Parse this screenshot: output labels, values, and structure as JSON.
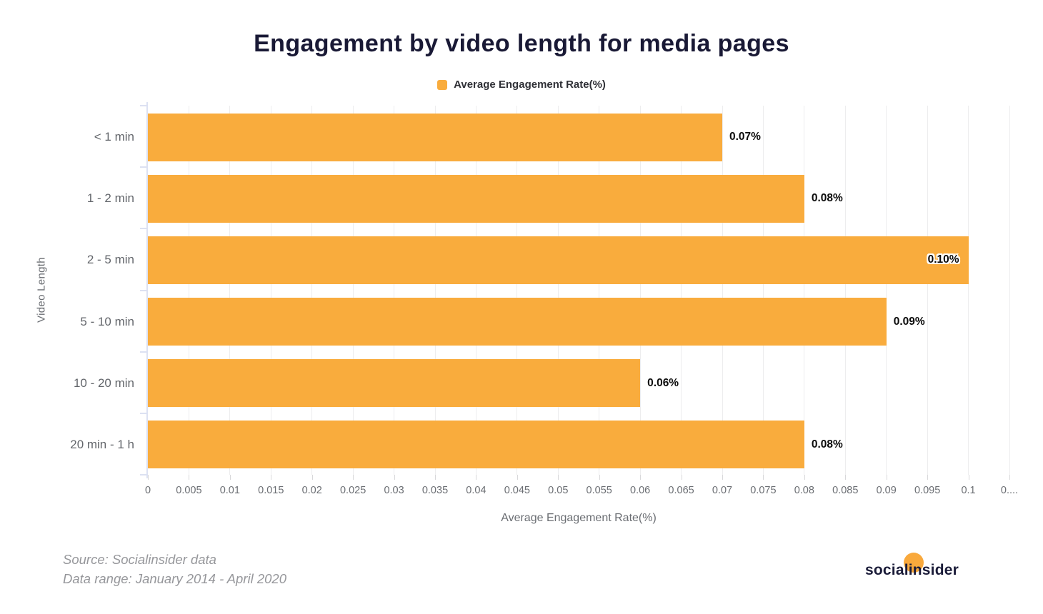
{
  "title": "Engagement by video length for media pages",
  "legend": {
    "label": "Average Engagement Rate(%)"
  },
  "chart_data": {
    "type": "bar",
    "orientation": "horizontal",
    "title": "Engagement by video length for media pages",
    "categories": [
      "< 1 min",
      "1 - 2 min",
      "2 - 5 min",
      "5 - 10 min",
      "10 - 20 min",
      "20 min - 1 h"
    ],
    "values": [
      0.07,
      0.08,
      0.1,
      0.09,
      0.06,
      0.08
    ],
    "value_labels": [
      "0.07%",
      "0.08%",
      "0.10%",
      "0.09%",
      "0.06%",
      "0.08%"
    ],
    "label_inside": [
      false,
      false,
      true,
      false,
      false,
      false
    ],
    "xlabel": "Average Engagement Rate(%)",
    "ylabel": "Video Length",
    "xlim": [
      0,
      0.105
    ],
    "grid": "vertical",
    "legend_position": "top-center",
    "x_ticks": [
      {
        "v": 0,
        "label": "0"
      },
      {
        "v": 0.005,
        "label": "0.005"
      },
      {
        "v": 0.01,
        "label": "0.01"
      },
      {
        "v": 0.015,
        "label": "0.015"
      },
      {
        "v": 0.02,
        "label": "0.02"
      },
      {
        "v": 0.025,
        "label": "0.025"
      },
      {
        "v": 0.03,
        "label": "0.03"
      },
      {
        "v": 0.035,
        "label": "0.035"
      },
      {
        "v": 0.04,
        "label": "0.04"
      },
      {
        "v": 0.045,
        "label": "0.045"
      },
      {
        "v": 0.05,
        "label": "0.05"
      },
      {
        "v": 0.055,
        "label": "0.055"
      },
      {
        "v": 0.06,
        "label": "0.06"
      },
      {
        "v": 0.065,
        "label": "0.065"
      },
      {
        "v": 0.07,
        "label": "0.07"
      },
      {
        "v": 0.075,
        "label": "0.075"
      },
      {
        "v": 0.08,
        "label": "0.08"
      },
      {
        "v": 0.085,
        "label": "0.085"
      },
      {
        "v": 0.09,
        "label": "0.09"
      },
      {
        "v": 0.095,
        "label": "0.095"
      },
      {
        "v": 0.1,
        "label": "0.1"
      },
      {
        "v": 0.105,
        "label": "0...."
      }
    ]
  },
  "source": {
    "line1": "Source: Socialinsider data",
    "line2": "Data range: January 2014 - April 2020"
  },
  "logo": {
    "text": "socialinsider"
  },
  "colors": {
    "bar": "#F9AC3D",
    "title_text": "#191935",
    "axis_line": "#DCE1F2",
    "gridline": "#EDEDEE",
    "tick": "#D8D8DA",
    "label_text": "#63666B",
    "value_label_text": "#0B0B0B",
    "source_text": "#96979B",
    "logo_dot": "#F9A93C",
    "logo_text": "#1B1C39"
  }
}
